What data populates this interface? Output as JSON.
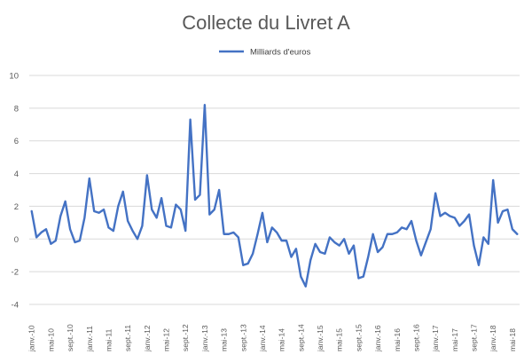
{
  "colors": {
    "series": "#4472c4",
    "grid": "#d9d9d9",
    "text": "#595959"
  },
  "chart_data": {
    "type": "line",
    "title": "Collecte du Livret A",
    "legend": {
      "position": "top",
      "entries": [
        "Milliards d'euros"
      ]
    },
    "xlabel": "",
    "ylabel": "",
    "ylim": [
      -4,
      10
    ],
    "yticks": [
      -4,
      -2,
      0,
      2,
      4,
      6,
      8,
      10
    ],
    "grid": true,
    "categories": [
      "janv.-10",
      "févr.-10",
      "mars-10",
      "avr.-10",
      "mai-10",
      "juin-10",
      "juil.-10",
      "août-10",
      "sept.-10",
      "oct.-10",
      "nov.-10",
      "déc.-10",
      "janv.-11",
      "févr.-11",
      "mars-11",
      "avr.-11",
      "mai-11",
      "juin-11",
      "juil.-11",
      "août-11",
      "sept.-11",
      "oct.-11",
      "nov.-11",
      "déc.-11",
      "janv.-12",
      "févr.-12",
      "mars-12",
      "avr.-12",
      "mai-12",
      "juin-12",
      "juil.-12",
      "août-12",
      "sept.-12",
      "oct.-12",
      "nov.-12",
      "déc.-12",
      "janv.-13",
      "févr.-13",
      "mars-13",
      "avr.-13",
      "mai-13",
      "juin-13",
      "juil.-13",
      "août-13",
      "sept.-13",
      "oct.-13",
      "nov.-13",
      "déc.-13",
      "janv.-14",
      "févr.-14",
      "mars-14",
      "avr.-14",
      "mai-14",
      "juin-14",
      "juil.-14",
      "août-14",
      "sept.-14",
      "oct.-14",
      "nov.-14",
      "déc.-14",
      "janv.-15",
      "févr.-15",
      "mars-15",
      "avr.-15",
      "mai-15",
      "juin-15",
      "juil.-15",
      "août-15",
      "sept.-15",
      "oct.-15",
      "nov.-15",
      "déc.-15",
      "janv.-16",
      "févr.-16",
      "mars-16",
      "avr.-16",
      "mai-16",
      "juin-16",
      "juil.-16",
      "août-16",
      "sept.-16",
      "oct.-16",
      "nov.-16",
      "déc.-16",
      "janv.-17",
      "févr.-17",
      "mars-17",
      "avr.-17",
      "mai-17",
      "juin-17",
      "juil.-17",
      "août-17",
      "sept.-17",
      "oct.-17",
      "nov.-17",
      "déc.-17",
      "janv.-18",
      "févr.-18",
      "mars-18",
      "avr.-18",
      "mai-18",
      "juin-18"
    ],
    "tick_labels": [
      "janv.-10",
      "mai-10",
      "sept.-10",
      "janv.-11",
      "mai-11",
      "sept.-11",
      "janv.-12",
      "mai-12",
      "sept.-12",
      "janv.-13",
      "mai-13",
      "sept.-13",
      "janv.-14",
      "mai-14",
      "sept.-14",
      "janv.-15",
      "mai-15",
      "sept.-15",
      "janv.-16",
      "mai-16",
      "sept.-16",
      "janv.-17",
      "mai-17",
      "sept.-17",
      "janv.-18",
      "mai-18"
    ],
    "series": [
      {
        "name": "Milliards d'euros",
        "values": [
          1.7,
          0.1,
          0.4,
          0.6,
          -0.3,
          -0.1,
          1.4,
          2.3,
          0.6,
          -0.2,
          -0.1,
          1.3,
          3.7,
          1.7,
          1.6,
          1.8,
          0.7,
          0.5,
          2.0,
          2.9,
          1.1,
          0.5,
          0.0,
          0.8,
          3.9,
          1.8,
          1.3,
          2.5,
          0.8,
          0.7,
          2.1,
          1.8,
          0.5,
          7.3,
          2.4,
          2.7,
          8.2,
          1.5,
          1.8,
          3.0,
          0.3,
          0.3,
          0.4,
          0.1,
          -1.6,
          -1.5,
          -0.9,
          0.3,
          1.6,
          -0.2,
          0.7,
          0.4,
          -0.1,
          -0.1,
          -1.1,
          -0.6,
          -2.3,
          -2.9,
          -1.3,
          -0.3,
          -0.8,
          -0.9,
          0.1,
          -0.2,
          -0.4,
          0.0,
          -0.9,
          -0.4,
          -2.4,
          -2.3,
          -1.1,
          0.3,
          -0.8,
          -0.5,
          0.3,
          0.3,
          0.4,
          0.7,
          0.6,
          1.1,
          -0.1,
          -1.0,
          -0.2,
          0.6,
          2.8,
          1.4,
          1.6,
          1.4,
          1.3,
          0.8,
          1.1,
          1.5,
          -0.4,
          -1.6,
          0.1,
          -0.3,
          3.6,
          1.0,
          1.7,
          1.8,
          0.6,
          0.3
        ]
      }
    ]
  }
}
